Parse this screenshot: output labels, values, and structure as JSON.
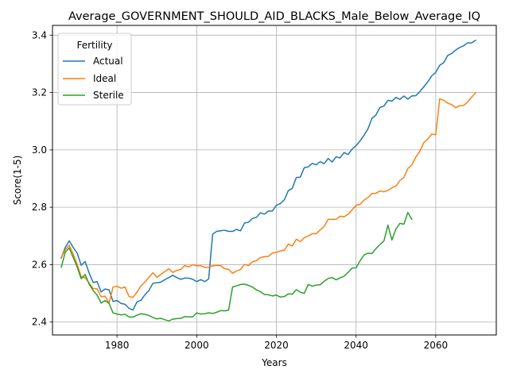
{
  "chart_data": {
    "type": "line",
    "title": "Average_GOVERNMENT_SHOULD_AID_BLACKS_Male_Below_Average_IQ",
    "xlabel": "Years",
    "ylabel": "Score(1-5)",
    "xlim": [
      1963.8,
      2075.2
    ],
    "ylim": [
      2.355,
      3.434
    ],
    "xticks": [
      1980,
      2000,
      2020,
      2040,
      2060
    ],
    "yticks": [
      2.4,
      2.6,
      2.8,
      3.0,
      3.2,
      3.4
    ],
    "xtick_labels": [
      "1980",
      "2000",
      "2020",
      "2040",
      "2060"
    ],
    "ytick_labels": [
      "2.4",
      "2.6",
      "2.8",
      "3.0",
      "3.2",
      "3.4"
    ],
    "grid": true,
    "legend": {
      "title": "Fertility",
      "placement": "top-left"
    },
    "series": [
      {
        "name": "Actual",
        "color": "#1f77b4",
        "x": [
          1966,
          1967,
          1968,
          1969,
          1970,
          1971,
          1972,
          1973,
          1974,
          1975,
          1976,
          1977,
          1978,
          1979,
          1980,
          1981,
          1982,
          1983,
          1984,
          1985,
          1986,
          1987,
          1988,
          1989,
          1990,
          1991,
          1992,
          1993,
          1994,
          1995,
          1996,
          1997,
          1998,
          1999,
          2000,
          2001,
          2002,
          2003,
          2004,
          2005,
          2006,
          2007,
          2008,
          2009,
          2010,
          2011,
          2012,
          2013,
          2014,
          2015,
          2016,
          2017,
          2018,
          2019,
          2020,
          2021,
          2022,
          2023,
          2024,
          2025,
          2026,
          2027,
          2028,
          2029,
          2030,
          2031,
          2032,
          2033,
          2034,
          2035,
          2036,
          2037,
          2038,
          2039,
          2040,
          2041,
          2042,
          2043,
          2044,
          2045,
          2046,
          2047,
          2048,
          2049,
          2050,
          2051,
          2052,
          2053,
          2054,
          2055,
          2056,
          2057,
          2058,
          2059,
          2060,
          2061,
          2062,
          2063,
          2064,
          2065,
          2066,
          2067,
          2068,
          2069,
          2070
        ],
        "values": [
          2.623,
          2.66,
          2.683,
          2.66,
          2.64,
          2.598,
          2.611,
          2.571,
          2.538,
          2.541,
          2.505,
          2.515,
          2.512,
          2.472,
          2.475,
          2.465,
          2.462,
          2.448,
          2.442,
          2.47,
          2.476,
          2.495,
          2.51,
          2.535,
          2.537,
          2.539,
          2.548,
          2.555,
          2.563,
          2.555,
          2.549,
          2.553,
          2.553,
          2.549,
          2.541,
          2.548,
          2.541,
          2.55,
          2.706,
          2.716,
          2.718,
          2.72,
          2.716,
          2.716,
          2.723,
          2.718,
          2.745,
          2.748,
          2.761,
          2.765,
          2.781,
          2.776,
          2.787,
          2.787,
          2.807,
          2.813,
          2.826,
          2.858,
          2.866,
          2.904,
          2.905,
          2.938,
          2.941,
          2.953,
          2.948,
          2.959,
          2.952,
          2.97,
          2.958,
          2.976,
          2.972,
          2.991,
          2.984,
          3.003,
          3.015,
          3.031,
          3.051,
          3.074,
          3.11,
          3.122,
          3.148,
          3.153,
          3.173,
          3.17,
          3.183,
          3.176,
          3.188,
          3.177,
          3.188,
          3.189,
          3.203,
          3.22,
          3.237,
          3.258,
          3.27,
          3.295,
          3.304,
          3.329,
          3.336,
          3.348,
          3.357,
          3.363,
          3.373,
          3.373,
          3.382
        ]
      },
      {
        "name": "Ideal",
        "color": "#ff7f0e",
        "x": [
          1966,
          1967,
          1968,
          1969,
          1970,
          1971,
          1972,
          1973,
          1974,
          1975,
          1976,
          1977,
          1978,
          1979,
          1980,
          1981,
          1982,
          1983,
          1984,
          1985,
          1986,
          1987,
          1988,
          1989,
          1990,
          1991,
          1992,
          1993,
          1994,
          1995,
          1996,
          1997,
          1998,
          1999,
          2000,
          2001,
          2002,
          2003,
          2004,
          2005,
          2006,
          2007,
          2008,
          2009,
          2010,
          2011,
          2012,
          2013,
          2014,
          2015,
          2016,
          2017,
          2018,
          2019,
          2020,
          2021,
          2022,
          2023,
          2024,
          2025,
          2026,
          2027,
          2028,
          2029,
          2030,
          2031,
          2032,
          2033,
          2034,
          2035,
          2036,
          2037,
          2038,
          2039,
          2040,
          2041,
          2042,
          2043,
          2044,
          2045,
          2046,
          2047,
          2048,
          2049,
          2050,
          2051,
          2052,
          2053,
          2054,
          2055,
          2056,
          2057,
          2058,
          2059,
          2060,
          2061,
          2062,
          2063,
          2064,
          2065,
          2066,
          2067,
          2068,
          2069,
          2070
        ],
        "values": [
          2.626,
          2.651,
          2.668,
          2.637,
          2.601,
          2.558,
          2.555,
          2.536,
          2.517,
          2.516,
          2.488,
          2.49,
          2.466,
          2.522,
          2.525,
          2.518,
          2.522,
          2.489,
          2.486,
          2.504,
          2.526,
          2.539,
          2.556,
          2.572,
          2.556,
          2.566,
          2.576,
          2.586,
          2.573,
          2.58,
          2.583,
          2.597,
          2.592,
          2.6,
          2.596,
          2.596,
          2.591,
          2.591,
          2.596,
          2.597,
          2.597,
          2.586,
          2.584,
          2.57,
          2.578,
          2.583,
          2.601,
          2.597,
          2.61,
          2.614,
          2.625,
          2.628,
          2.629,
          2.641,
          2.643,
          2.648,
          2.65,
          2.672,
          2.665,
          2.689,
          2.68,
          2.694,
          2.7,
          2.708,
          2.708,
          2.721,
          2.733,
          2.758,
          2.758,
          2.758,
          2.769,
          2.767,
          2.776,
          2.791,
          2.807,
          2.81,
          2.825,
          2.834,
          2.848,
          2.849,
          2.857,
          2.854,
          2.859,
          2.868,
          2.874,
          2.893,
          2.904,
          2.935,
          2.948,
          2.975,
          2.995,
          3.025,
          3.038,
          3.055,
          3.053,
          3.178,
          3.173,
          3.163,
          3.158,
          3.147,
          3.154,
          3.155,
          3.167,
          3.184,
          3.199
        ]
      },
      {
        "name": "Sterile",
        "color": "#2ca02c",
        "x": [
          1966,
          1967,
          1968,
          1969,
          1970,
          1971,
          1972,
          1973,
          1974,
          1975,
          1976,
          1977,
          1978,
          1979,
          1980,
          1981,
          1982,
          1983,
          1984,
          1985,
          1986,
          1987,
          1988,
          1989,
          1990,
          1991,
          1992,
          1993,
          1994,
          1995,
          1996,
          1997,
          1998,
          1999,
          2000,
          2001,
          2002,
          2003,
          2004,
          2005,
          2006,
          2007,
          2008,
          2009,
          2010,
          2011,
          2012,
          2013,
          2014,
          2015,
          2016,
          2017,
          2018,
          2019,
          2020,
          2021,
          2022,
          2023,
          2024,
          2025,
          2026,
          2027,
          2028,
          2029,
          2030,
          2031,
          2032,
          2033,
          2034,
          2035,
          2036,
          2037,
          2038,
          2039,
          2040,
          2041,
          2042,
          2043,
          2044,
          2045,
          2046,
          2047,
          2048,
          2049,
          2050,
          2051,
          2052,
          2053,
          2054
        ],
        "values": [
          2.591,
          2.643,
          2.658,
          2.625,
          2.592,
          2.551,
          2.566,
          2.532,
          2.51,
          2.494,
          2.466,
          2.475,
          2.465,
          2.432,
          2.428,
          2.425,
          2.427,
          2.418,
          2.417,
          2.424,
          2.429,
          2.427,
          2.423,
          2.416,
          2.411,
          2.413,
          2.408,
          2.404,
          2.41,
          2.412,
          2.413,
          2.419,
          2.418,
          2.418,
          2.432,
          2.428,
          2.429,
          2.432,
          2.43,
          2.434,
          2.44,
          2.439,
          2.441,
          2.522,
          2.526,
          2.531,
          2.532,
          2.528,
          2.522,
          2.512,
          2.506,
          2.496,
          2.495,
          2.491,
          2.494,
          2.487,
          2.489,
          2.498,
          2.497,
          2.513,
          2.504,
          2.5,
          2.531,
          2.525,
          2.529,
          2.53,
          2.542,
          2.552,
          2.555,
          2.547,
          2.554,
          2.56,
          2.573,
          2.588,
          2.589,
          2.613,
          2.634,
          2.64,
          2.639,
          2.656,
          2.67,
          2.683,
          2.738,
          2.686,
          2.724,
          2.744,
          2.741,
          2.782,
          2.758
        ]
      }
    ]
  }
}
